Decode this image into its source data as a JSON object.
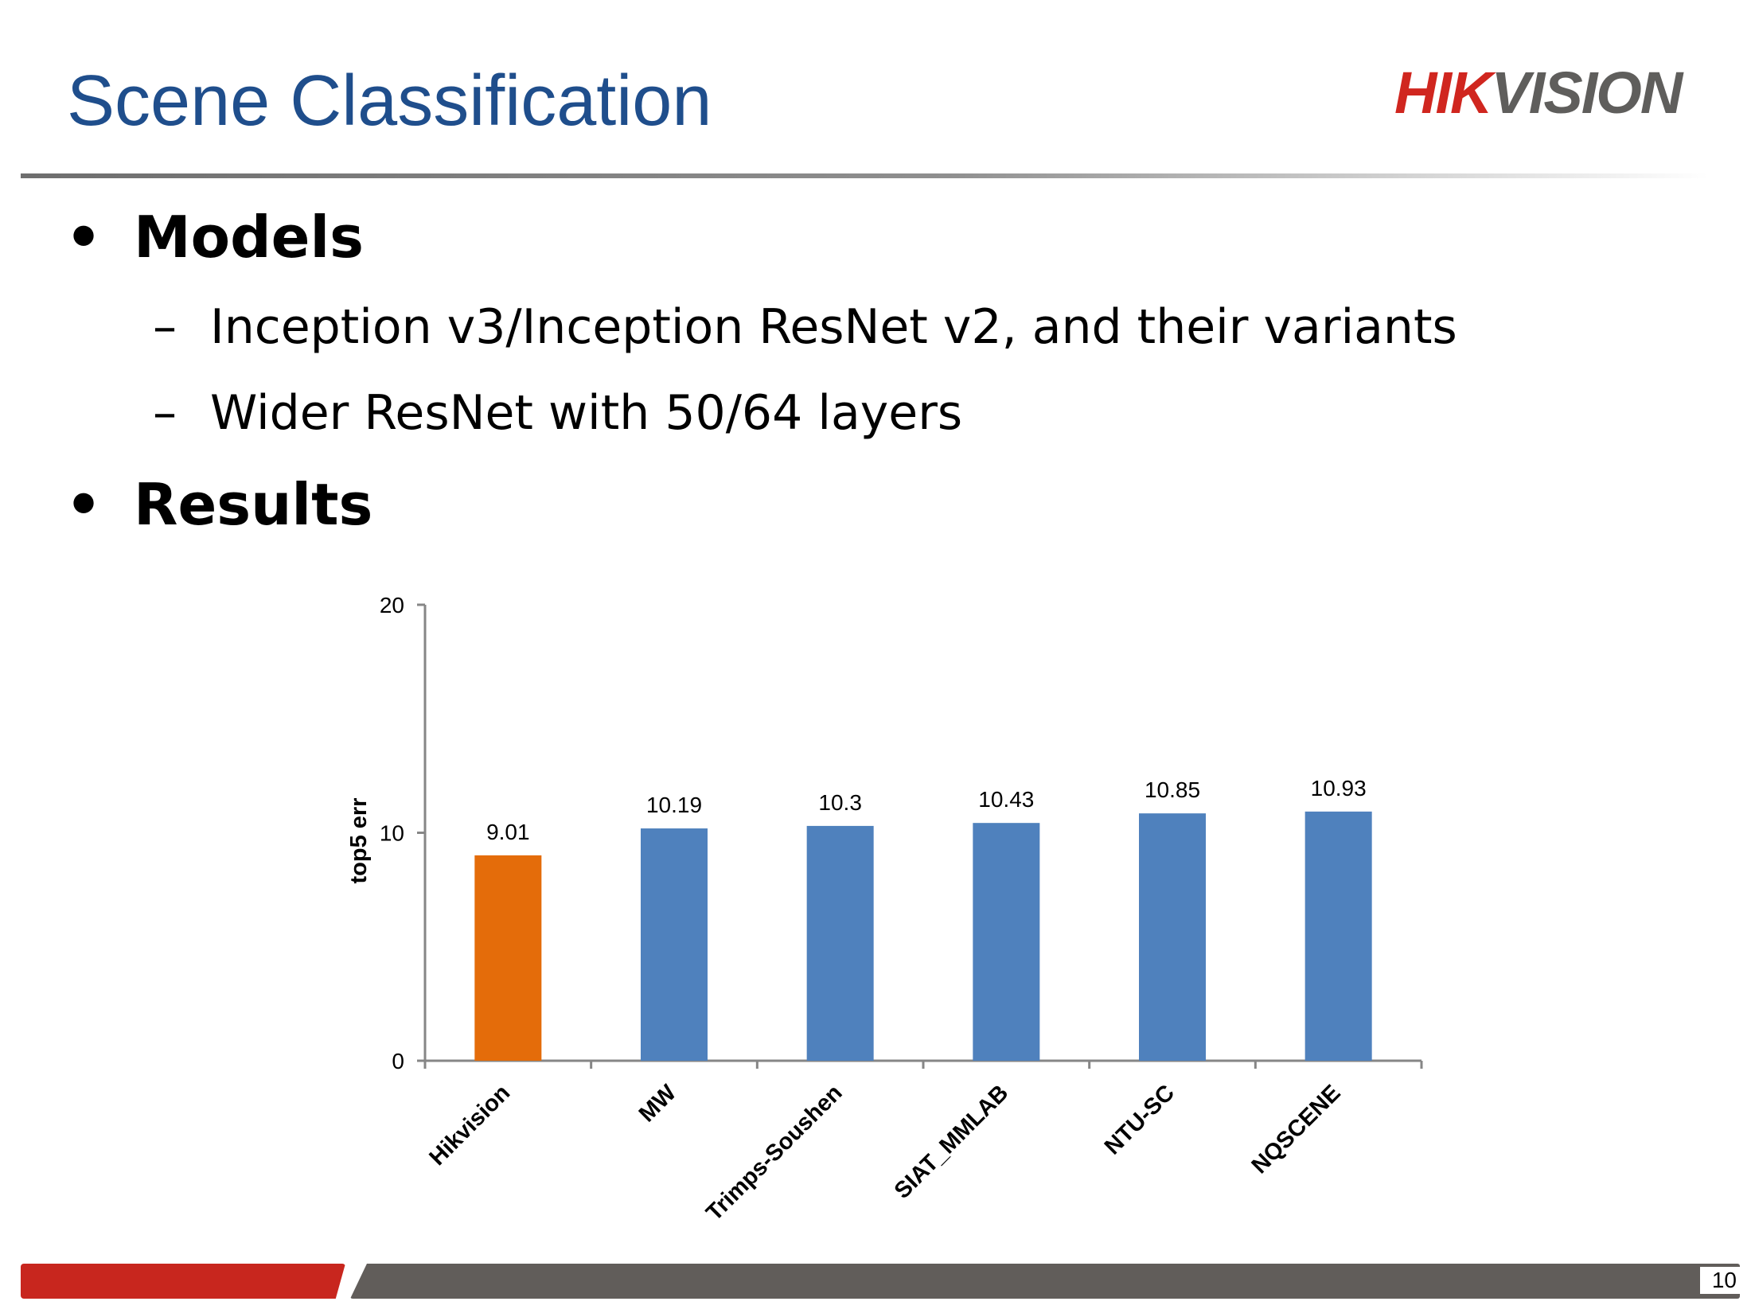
{
  "slide": {
    "title": "Scene Classification",
    "logo_part1": "HIK",
    "logo_part2": "VISION",
    "page_number": "10"
  },
  "content": {
    "bullets": [
      {
        "label": "Models",
        "subitems": [
          "Inception v3/Inception ResNet v2, and their variants",
          "Wider ResNet with 50/64 layers"
        ]
      },
      {
        "label": "Results",
        "subitems": []
      }
    ],
    "bullet_marker": "•",
    "dash_marker": "–"
  },
  "colors": {
    "title": "#1f4e8c",
    "highlight_bar": "#e46c0a",
    "bar": "#4f81bd",
    "logo_red": "#d0261f",
    "logo_gray": "#5f5e5c"
  },
  "chart_data": {
    "type": "bar",
    "categories": [
      "Hikvision",
      "MW",
      "Trimps-Soushen",
      "SIAT_MMLAB",
      "NTU-SC",
      "NQSCENE"
    ],
    "series": [
      {
        "values": [
          9.01,
          10.19,
          10.3,
          10.43,
          10.85,
          10.93
        ]
      }
    ],
    "value_labels": [
      "9.01",
      "10.19",
      "10.3",
      "10.43",
      "10.85",
      "10.93"
    ],
    "highlight_index": 0,
    "ylabel": "top5 err",
    "ylim": [
      0,
      20
    ],
    "yticks": [
      "0",
      "10",
      "20"
    ],
    "grid": false,
    "legend": "none"
  }
}
